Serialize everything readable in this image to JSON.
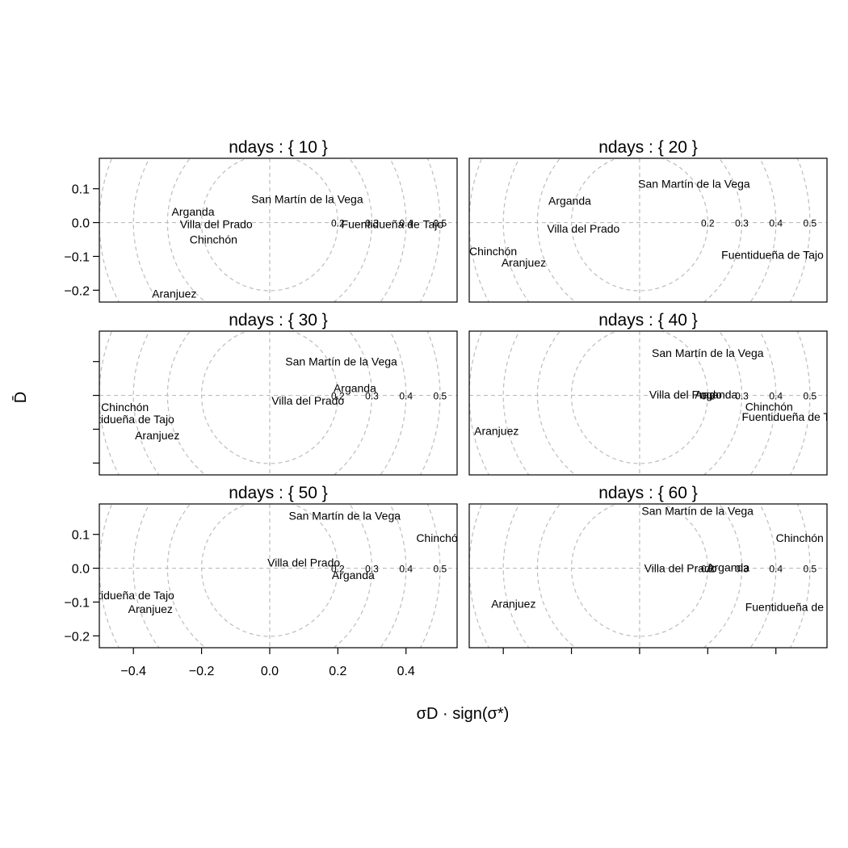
{
  "chart_data": {
    "type": "scatter",
    "layout": "trellis 2 columns x 3 rows, text labels as points, dashed circles centered at origin",
    "xlabel": "σD · sign(σ*)",
    "ylabel": "D̄",
    "xlim": [
      -0.5,
      0.55
    ],
    "ylim": [
      -0.235,
      0.19
    ],
    "x_ticks": [
      "−0.4",
      "−0.2",
      "0.0",
      "0.2",
      "0.4"
    ],
    "y_ticks": [
      "−0.2",
      "−0.1",
      "0.0",
      "0.1"
    ],
    "x_tick_values": [
      -0.4,
      -0.2,
      0.0,
      0.2,
      0.4
    ],
    "y_tick_values": [
      -0.2,
      -0.1,
      0.0,
      0.1
    ],
    "circle_radii": [
      0.2,
      0.3,
      0.4,
      0.5
    ],
    "circle_labels": [
      "0.2",
      "0.3",
      "0.4",
      "0.5"
    ],
    "grid": "dashed lines at x=0 and y=0",
    "panels": [
      {
        "strip": "ndays : { 10 }",
        "points": [
          {
            "label": "San Martín de la Vega",
            "x": 0.11,
            "y": 0.07
          },
          {
            "label": "Arganda",
            "x": -0.225,
            "y": 0.033
          },
          {
            "label": "Villa del Prado",
            "x": -0.157,
            "y": -0.005
          },
          {
            "label": "Chinchón",
            "x": -0.165,
            "y": -0.05
          },
          {
            "label": "Fuentidueña de Tajo",
            "x": 0.36,
            "y": -0.005
          },
          {
            "label": "Aranjuez",
            "x": -0.28,
            "y": -0.21
          }
        ]
      },
      {
        "strip": "ndays : { 20 }",
        "points": [
          {
            "label": "San Martín de la Vega",
            "x": 0.16,
            "y": 0.115
          },
          {
            "label": "Arganda",
            "x": -0.205,
            "y": 0.065
          },
          {
            "label": "Villa del Prado",
            "x": -0.165,
            "y": -0.018
          },
          {
            "label": "Chinchón",
            "x": -0.43,
            "y": -0.085
          },
          {
            "label": "Aranjuez",
            "x": -0.34,
            "y": -0.118
          },
          {
            "label": "Fuentidueña de Tajo",
            "x": 0.39,
            "y": -0.095
          }
        ]
      },
      {
        "strip": "ndays : { 30 }",
        "points": [
          {
            "label": "San Martín de la Vega",
            "x": 0.21,
            "y": 0.1
          },
          {
            "label": "Arganda",
            "x": 0.25,
            "y": 0.022
          },
          {
            "label": "Villa del Prado",
            "x": 0.112,
            "y": -0.015
          },
          {
            "label": "Chinchón",
            "x": -0.425,
            "y": -0.035
          },
          {
            "label": "Fuentidueña de Tajo",
            "x": -0.43,
            "y": -0.07
          },
          {
            "label": "Aranjuez",
            "x": -0.33,
            "y": -0.118
          }
        ]
      },
      {
        "strip": "ndays : { 40 }",
        "points": [
          {
            "label": "San Martín de la Vega",
            "x": 0.2,
            "y": 0.125
          },
          {
            "label": "Villa del Prado",
            "x": 0.135,
            "y": 0.003
          },
          {
            "label": "Arganda",
            "x": 0.225,
            "y": 0.003
          },
          {
            "label": "Chinchón",
            "x": 0.38,
            "y": -0.033
          },
          {
            "label": "Fuentidueña de Tajo",
            "x": 0.45,
            "y": -0.063
          },
          {
            "label": "Aranjuez",
            "x": -0.42,
            "y": -0.105
          }
        ]
      },
      {
        "strip": "ndays : { 50 }",
        "points": [
          {
            "label": "San Martín de la Vega",
            "x": 0.22,
            "y": 0.155
          },
          {
            "label": "Chinchón",
            "x": 0.5,
            "y": 0.09
          },
          {
            "label": "Villa del Prado",
            "x": 0.1,
            "y": 0.017
          },
          {
            "label": "Arganda",
            "x": 0.245,
            "y": -0.02
          },
          {
            "label": "Fuentidueña de Tajo",
            "x": -0.43,
            "y": -0.08
          },
          {
            "label": "Aranjuez",
            "x": -0.35,
            "y": -0.12
          }
        ]
      },
      {
        "strip": "ndays : { 60 }",
        "points": [
          {
            "label": "San Martín de la Vega",
            "x": 0.17,
            "y": 0.17
          },
          {
            "label": "Chinchón",
            "x": 0.47,
            "y": 0.09
          },
          {
            "label": "Villa del Prado",
            "x": 0.12,
            "y": 0.0
          },
          {
            "label": "Arganda",
            "x": 0.26,
            "y": 0.003
          },
          {
            "label": "Fuentidueña de Tajo",
            "x": 0.46,
            "y": -0.115
          },
          {
            "label": "Aranjuez",
            "x": -0.37,
            "y": -0.105
          }
        ]
      }
    ]
  }
}
